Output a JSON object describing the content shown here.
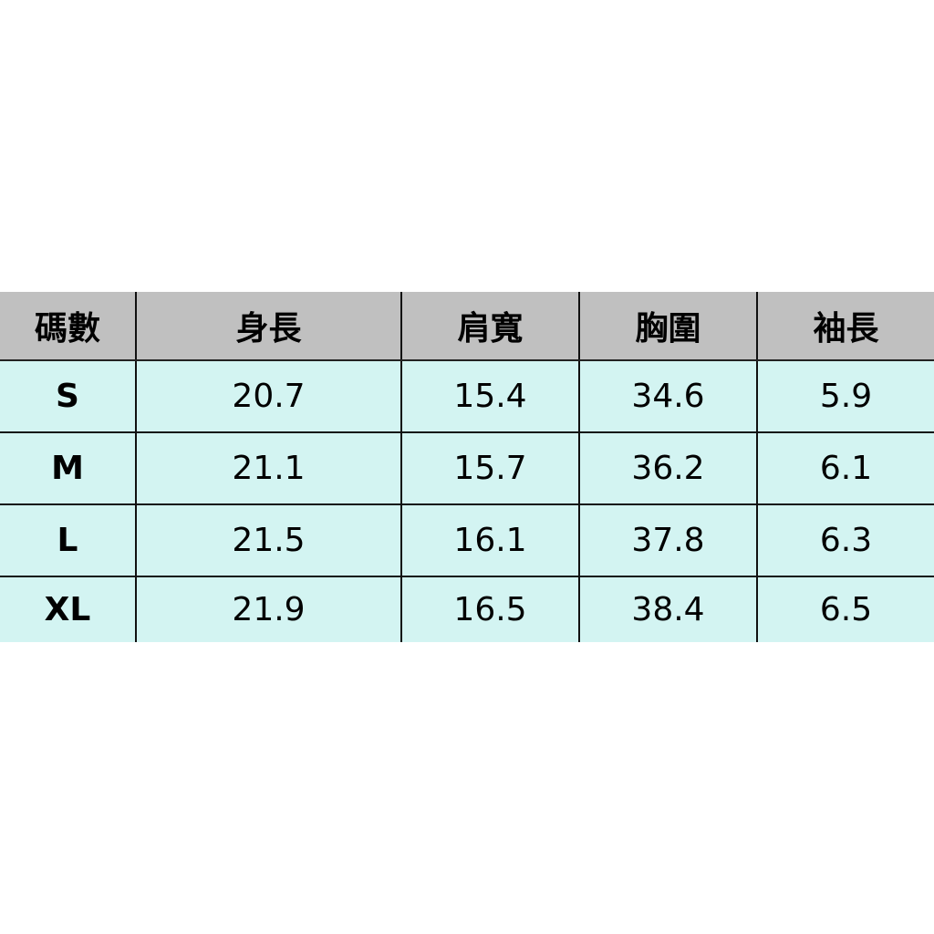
{
  "table": {
    "headers": [
      "碼數",
      "身長",
      "肩寬",
      "胸圍",
      "袖長"
    ],
    "rows": [
      [
        "S",
        "20.7",
        "15.4",
        "34.6",
        "5.9"
      ],
      [
        "M",
        "21.1",
        "15.7",
        "36.2",
        "6.1"
      ],
      [
        "L",
        "21.5",
        "16.1",
        "37.8",
        "6.3"
      ],
      [
        "XL",
        "21.9",
        "16.5",
        "38.4",
        "6.5"
      ]
    ]
  },
  "colors": {
    "header_bg": "#c0c0c0",
    "row_bg": "#d3f4f2",
    "border": "#111111"
  }
}
